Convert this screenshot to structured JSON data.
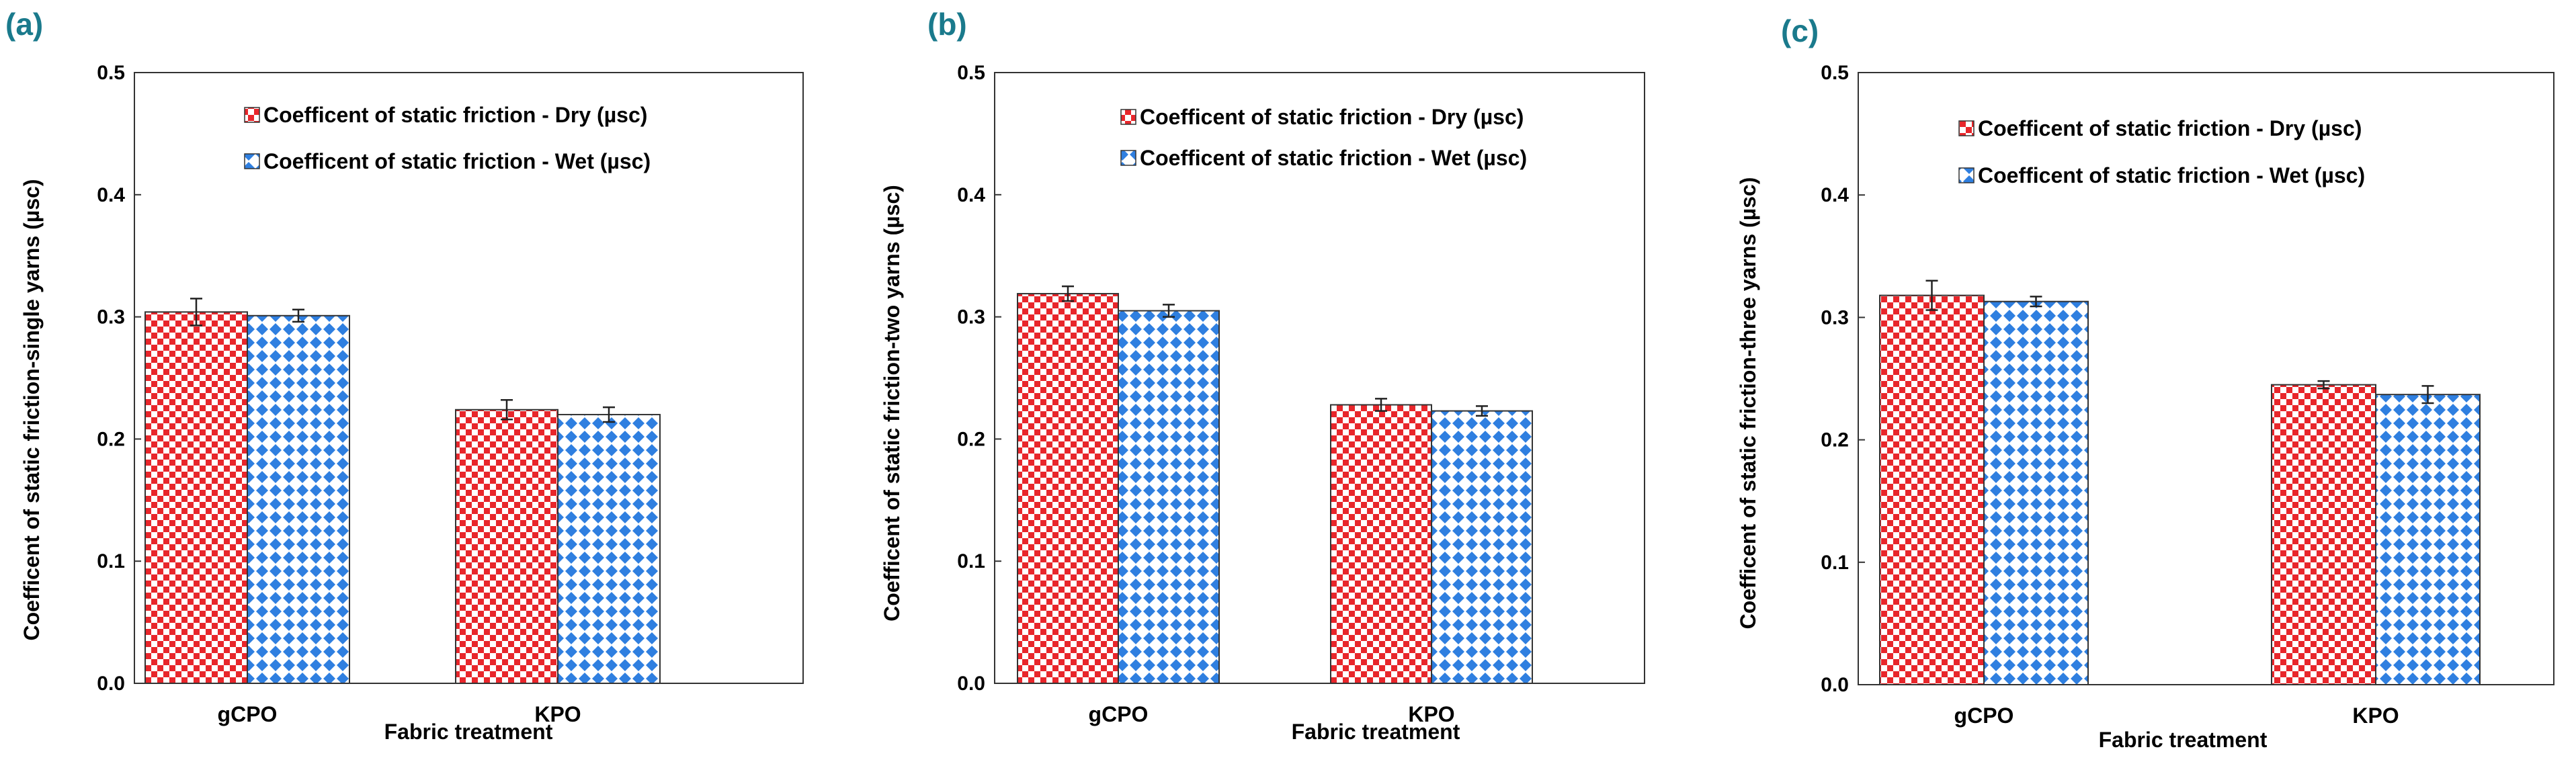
{
  "colors": {
    "dry": "#e8262b",
    "wet": "#2f7fe0",
    "panel_letter": "#1a7a8c",
    "axis": "#333333"
  },
  "chart_data": [
    {
      "type": "bar",
      "panel": "(a)",
      "categories": [
        "gCPO",
        "KPO"
      ],
      "series": [
        {
          "name": "Coefficent of static friction - Dry (µsc)",
          "values": [
            0.304,
            0.224
          ],
          "errors": [
            0.011,
            0.008
          ]
        },
        {
          "name": "Coefficent of static friction - Wet (µsc)",
          "values": [
            0.301,
            0.22
          ],
          "errors": [
            0.005,
            0.006
          ]
        }
      ],
      "xlabel": "Fabric treatment",
      "ylabel": "Coefficent of static friction-single yarns (µsc)",
      "ylim": [
        0,
        0.5
      ],
      "yticks": [
        "0.0",
        "0.1",
        "0.2",
        "0.3",
        "0.4",
        "0.5"
      ],
      "legend": "top-center",
      "grid": false
    },
    {
      "type": "bar",
      "panel": "(b)",
      "categories": [
        "gCPO",
        "KPO"
      ],
      "series": [
        {
          "name": "Coefficent of static friction - Dry (µsc)",
          "values": [
            0.319,
            0.228
          ],
          "errors": [
            0.006,
            0.005
          ]
        },
        {
          "name": "Coefficent of static friction - Wet (µsc)",
          "values": [
            0.305,
            0.223
          ],
          "errors": [
            0.005,
            0.004
          ]
        }
      ],
      "xlabel": "Fabric treatment",
      "ylabel": "Coefficent of static friction-two yarns (µsc)",
      "ylim": [
        0,
        0.5
      ],
      "yticks": [
        "0.0",
        "0.1",
        "0.2",
        "0.3",
        "0.4",
        "0.5"
      ],
      "legend": "top-center",
      "grid": false
    },
    {
      "type": "bar",
      "panel": "(c)",
      "categories": [
        "gCPO",
        "KPO"
      ],
      "series": [
        {
          "name": "Coefficent of static friction - Dry (µsc)",
          "values": [
            0.318,
            0.245
          ],
          "errors": [
            0.012,
            0.003
          ]
        },
        {
          "name": "Coefficent of static friction - Wet (µsc)",
          "values": [
            0.313,
            0.237
          ],
          "errors": [
            0.004,
            0.007
          ]
        }
      ],
      "xlabel": "Fabric treatment",
      "ylabel": "Coefficent of static friction-three yarns (µsc)",
      "ylim": [
        0,
        0.5
      ],
      "yticks": [
        "0.0",
        "0.1",
        "0.2",
        "0.3",
        "0.4",
        "0.5"
      ],
      "legend": "top-center",
      "grid": false
    }
  ]
}
